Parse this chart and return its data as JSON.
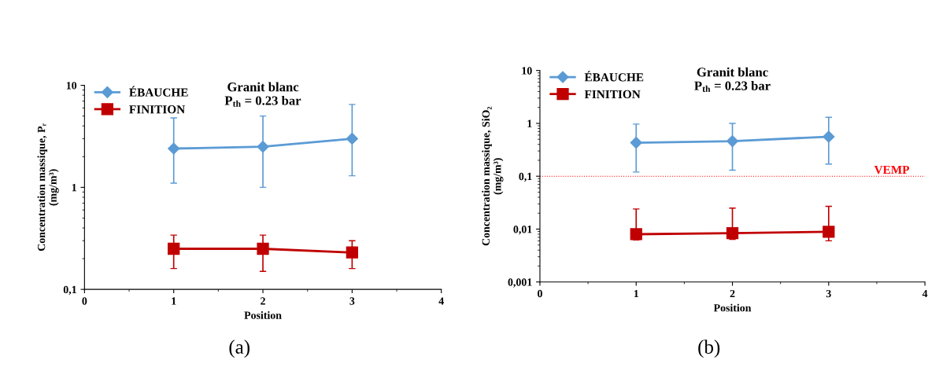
{
  "chart_data": [
    {
      "type": "line",
      "title": "Granit blanc\nP$_{th}$ = 0.23 bar",
      "xlabel": "Position",
      "ylabel": "Concentration massique, Pᵣ\n(mg/m³)",
      "x": [
        1,
        2,
        3
      ],
      "log": "y",
      "xlim": [
        0,
        4
      ],
      "xticks": [
        0,
        1,
        2,
        3,
        4
      ],
      "ylim": [
        0.1,
        10
      ],
      "yticks": [
        {
          "value": 0.1,
          "label": "0,1"
        },
        1,
        10
      ],
      "legend": "top left",
      "grid": false,
      "series": [
        {
          "name": "ÉBAUCHE",
          "color": "#5b9bd5",
          "marker": "diamond",
          "values": [
            2.4,
            2.5,
            3.0
          ],
          "errors": [
            [
              1.1,
              4.8
            ],
            [
              1.0,
              5.0
            ],
            [
              1.3,
              6.5
            ]
          ]
        },
        {
          "name": "FINITION",
          "color": "#c00000",
          "marker": "square",
          "values": [
            0.25,
            0.25,
            0.23
          ],
          "errors": [
            [
              0.16,
              0.34
            ],
            [
              0.15,
              0.34
            ],
            [
              0.16,
              0.3
            ]
          ]
        }
      ],
      "annotations": [
        "(a)"
      ]
    },
    {
      "type": "line",
      "title": "Granit blanc\nP$_{th}$ = 0.23 bar",
      "xlabel": "Position",
      "ylabel": "Concentration massique, SiO₂\n(mg/m³)",
      "x": [
        1,
        2,
        3
      ],
      "log": "y",
      "xlim": [
        0,
        4
      ],
      "xticks": [
        0,
        1,
        2,
        3,
        4
      ],
      "ylim": [
        0.001,
        10
      ],
      "yticks": [
        {
          "value": 0.001,
          "label": "0,001"
        },
        {
          "value": 0.01,
          "label": "0,01"
        },
        {
          "value": 0.1,
          "label": "0,1"
        },
        1,
        10
      ],
      "legend": "top left",
      "grid": false,
      "series": [
        {
          "name": "ÉBAUCHE",
          "color": "#5b9bd5",
          "marker": "diamond",
          "values": [
            0.43,
            0.46,
            0.56
          ],
          "errors": [
            [
              0.12,
              0.97
            ],
            [
              0.13,
              1.0
            ],
            [
              0.17,
              1.3
            ]
          ]
        },
        {
          "name": "FINITION",
          "color": "#c00000",
          "marker": "square",
          "values": [
            0.008,
            0.0084,
            0.0089
          ],
          "errors": [
            [
              0.0062,
              0.024
            ],
            [
              0.0064,
              0.025
            ],
            [
              0.006,
              0.027
            ]
          ]
        }
      ],
      "ref_lines": [
        {
          "axis": "y",
          "value": 0.1,
          "label": "VEMP",
          "color": "#ff0000",
          "line_style": "dotted"
        }
      ],
      "annotations": [
        "(b)"
      ]
    }
  ]
}
